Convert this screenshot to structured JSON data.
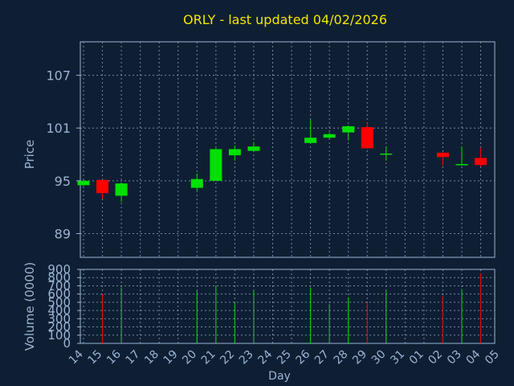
{
  "chart_data": {
    "type": "candlestick",
    "title": "ORLY - last updated 04/02/2026",
    "xlabel": "Day",
    "price_panel": {
      "ylabel": "Price",
      "yticks": [
        89,
        95,
        101,
        107
      ],
      "ylim": [
        86.3,
        110.8
      ]
    },
    "volume_panel": {
      "ylabel": "Volume (0000)",
      "yticks": [
        0,
        100,
        200,
        300,
        400,
        500,
        600,
        700,
        800,
        900
      ],
      "ylim": [
        0,
        900
      ]
    },
    "x_ticks": [
      "14",
      "15",
      "16",
      "17",
      "18",
      "19",
      "20",
      "21",
      "22",
      "23",
      "24",
      "25",
      "26",
      "27",
      "28",
      "29",
      "30",
      "31",
      "01",
      "02",
      "03",
      "04",
      "05"
    ],
    "grid": true,
    "colors": {
      "up": "#00e000",
      "down": "#ff0000",
      "doji": "#00e000",
      "background": "#0f1f33",
      "title": "#f2e600",
      "text": "#9ab4d4",
      "grid": "#9ab4d4"
    },
    "candles": [
      {
        "day": "14",
        "open": 94.5,
        "high": 95.1,
        "low": 94.4,
        "close": 95.0,
        "volume": 0
      },
      {
        "day": "15",
        "open": 95.1,
        "high": 95.1,
        "low": 93.0,
        "close": 93.6,
        "volume": 600
      },
      {
        "day": "16",
        "open": 93.3,
        "high": 94.8,
        "low": 92.6,
        "close": 94.7,
        "volume": 680
      },
      {
        "day": "20",
        "open": 94.2,
        "high": 95.8,
        "low": 93.9,
        "close": 95.2,
        "volume": 640
      },
      {
        "day": "21",
        "open": 95.0,
        "high": 98.7,
        "low": 95.0,
        "close": 98.6,
        "volume": 700
      },
      {
        "day": "22",
        "open": 97.9,
        "high": 99.0,
        "low": 97.3,
        "close": 98.6,
        "volume": 500
      },
      {
        "day": "23",
        "open": 98.4,
        "high": 99.4,
        "low": 98.4,
        "close": 98.9,
        "volume": 640
      },
      {
        "day": "26",
        "open": 99.3,
        "high": 102.0,
        "low": 99.3,
        "close": 99.9,
        "volume": 680
      },
      {
        "day": "27",
        "open": 99.9,
        "high": 100.5,
        "low": 99.8,
        "close": 100.3,
        "volume": 480
      },
      {
        "day": "28",
        "open": 100.5,
        "high": 101.3,
        "low": 99.6,
        "close": 101.2,
        "volume": 560
      },
      {
        "day": "29",
        "open": 101.1,
        "high": 101.6,
        "low": 98.6,
        "close": 98.7,
        "volume": 500
      },
      {
        "day": "30",
        "open": 98.1,
        "high": 98.9,
        "low": 97.3,
        "close": 98.1,
        "volume": 640
      },
      {
        "day": "02",
        "open": 98.2,
        "high": 98.2,
        "low": 96.7,
        "close": 97.7,
        "volume": 580
      },
      {
        "day": "03",
        "open": 96.9,
        "high": 98.9,
        "low": 96.8,
        "close": 96.9,
        "volume": 660
      },
      {
        "day": "04",
        "open": 97.6,
        "high": 98.8,
        "low": 96.6,
        "close": 96.8,
        "volume": 850
      }
    ]
  }
}
